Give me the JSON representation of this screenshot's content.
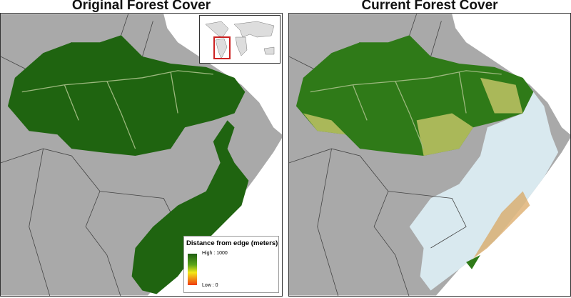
{
  "panels": [
    {
      "title": "Original Forest Cover"
    },
    {
      "title": "Current Forest Cover"
    }
  ],
  "legend": {
    "title": "Distance from edge (meters)",
    "high_label": "High : 1000",
    "low_label": "Low : 0",
    "gradient_colors": [
      "#1e5e12",
      "#5aa41a",
      "#f2e81a",
      "#ef3a10"
    ]
  },
  "colors": {
    "land": "#a9a9a9",
    "ocean": "#ffffff",
    "forest": "#1f6410",
    "cleared": "#d9e9ef",
    "inset_box": "#cc2222"
  }
}
